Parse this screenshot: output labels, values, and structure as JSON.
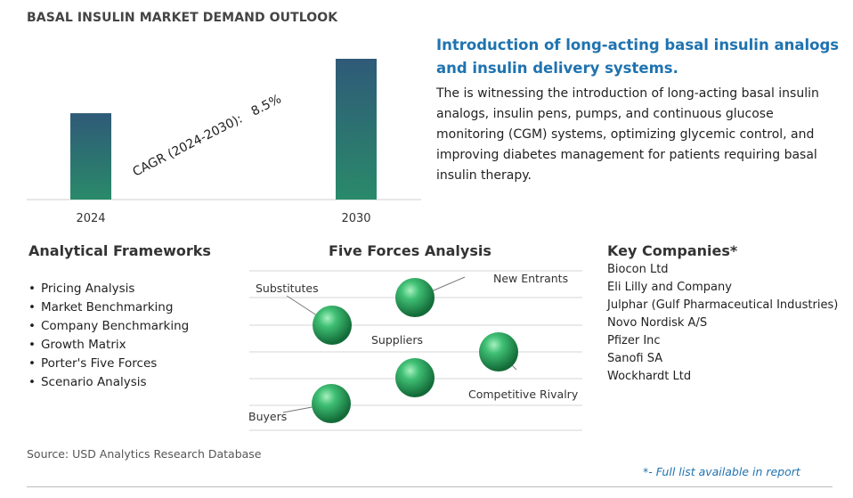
{
  "title": "BASAL INSULIN MARKET DEMAND OUTLOOK",
  "chart_data": {
    "type": "bar",
    "categories": [
      "2024",
      "2030"
    ],
    "values": [
      1.0,
      1.63
    ],
    "annotation": "CAGR (2024-2030):   8.5%",
    "colors": {
      "bar_top": "#2f5a78",
      "bar_bottom": "#2a8a6a"
    }
  },
  "intro": {
    "heading": "Introduction of long-acting basal insulin analogs and insulin delivery systems.",
    "body": "The is witnessing the introduction of long-acting basal insulin analogs, insulin pens, pumps, and continuous glucose monitoring (CGM) systems, optimizing glycemic control, and improving diabetes management for patients requiring basal insulin therapy."
  },
  "frameworks": {
    "heading": "Analytical Frameworks",
    "items": [
      "Pricing Analysis",
      "Market Benchmarking",
      "Company Benchmarking",
      "Growth Matrix",
      "Porter's Five Forces",
      "Scenario Analysis"
    ]
  },
  "five_forces": {
    "heading": "Five Forces Analysis",
    "labels": {
      "substitutes": "Substitutes",
      "new_entrants": "New Entrants",
      "suppliers": "Suppliers",
      "competitive_rivalry": "Competitive Rivalry",
      "buyers": "Buyers"
    },
    "sphere_color": "#2e9e5e"
  },
  "companies": {
    "heading": "Key Companies*",
    "items": [
      "Biocon Ltd",
      "Eli Lilly and Company",
      "Julphar (Gulf Pharmaceutical Industries)",
      "Novo Nordisk A/S",
      "Pfizer Inc",
      "Sanofi SA",
      "Wockhardt Ltd"
    ]
  },
  "source": "Source: USD Analytics Research Database",
  "footnote": "*- Full list available in report"
}
